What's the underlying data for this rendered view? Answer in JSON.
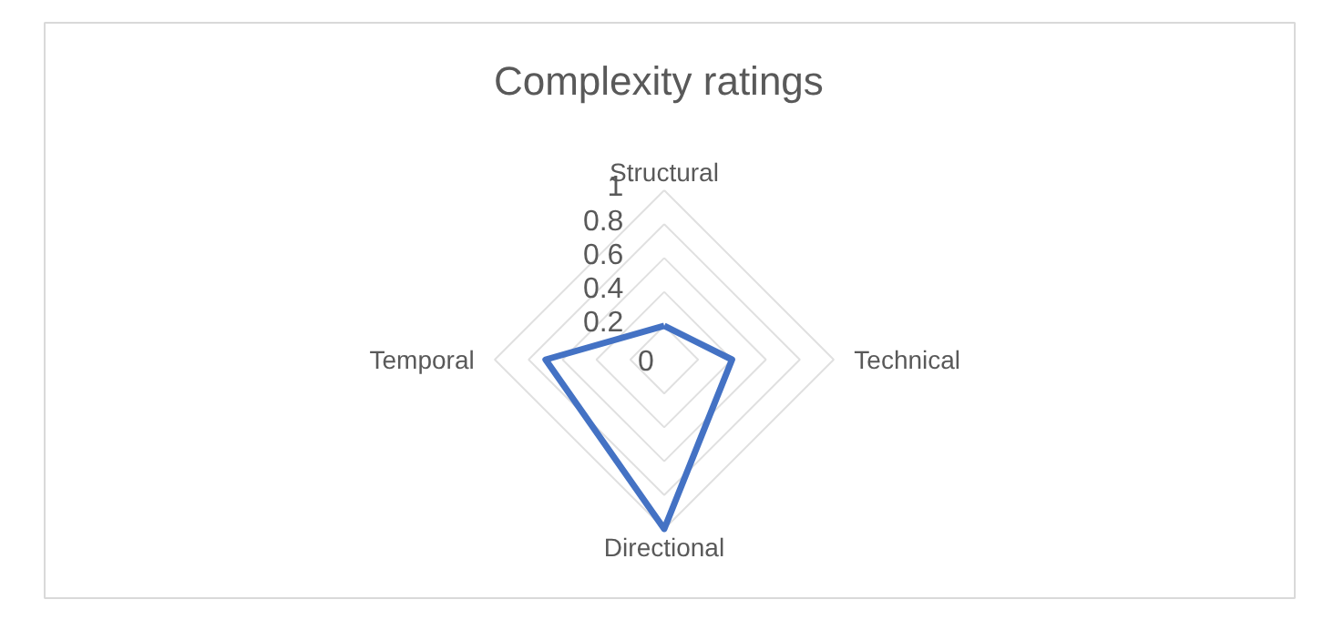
{
  "chart_data": {
    "type": "radar",
    "title": "Complexity  ratings",
    "categories": [
      "Structural",
      "Technical",
      "Directional",
      "Temporal"
    ],
    "series": [
      {
        "color": "#4472c4",
        "values": [
          0.2,
          0.4,
          1,
          0.7
        ]
      }
    ],
    "ylim": [
      0,
      1
    ],
    "yticks": [
      0,
      0.2,
      0.4,
      0.6,
      0.8,
      1
    ],
    "grid": true,
    "marker": "none",
    "line_style": "solid"
  }
}
